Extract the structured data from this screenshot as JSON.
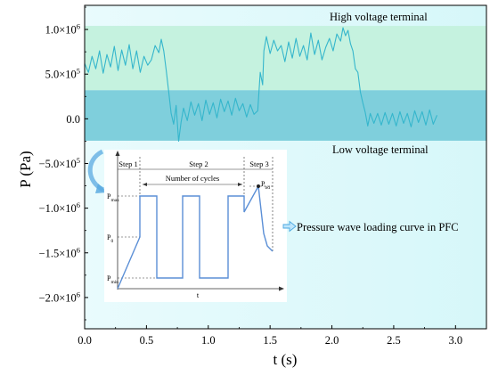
{
  "chart_data": {
    "type": "line",
    "xlabel": "t (s)",
    "ylabel": "P (Pa)",
    "xlim": [
      0.0,
      3.25
    ],
    "ylim": [
      -2350000.0,
      1270000.0
    ],
    "x_ticks": [
      {
        "v": 0.0,
        "label": "0.0"
      },
      {
        "v": 0.5,
        "label": "0.5"
      },
      {
        "v": 1.0,
        "label": "1.0"
      },
      {
        "v": 1.5,
        "label": "1.5"
      },
      {
        "v": 2.0,
        "label": "2.0"
      },
      {
        "v": 2.5,
        "label": "2.5"
      },
      {
        "v": 3.0,
        "label": "3.0"
      }
    ],
    "y_ticks": [
      {
        "v": 1000000.0,
        "mant": "1.0×10",
        "exp": "6"
      },
      {
        "v": 500000.0,
        "mant": "5.0×10",
        "exp": "5"
      },
      {
        "v": 0.0,
        "mant": "0.0",
        "exp": ""
      },
      {
        "v": -500000.0,
        "mant": "−5.0×10",
        "exp": "5"
      },
      {
        "v": -1000000.0,
        "mant": "−1.0×10",
        "exp": "6"
      },
      {
        "v": -1500000.0,
        "mant": "−1.5×10",
        "exp": "6"
      },
      {
        "v": -2000000.0,
        "mant": "−2.0×10",
        "exp": "6"
      }
    ],
    "bands": [
      {
        "name": "High voltage terminal",
        "y_from": 320000.0,
        "y_to": 1040000.0,
        "color": "#c5f2df"
      },
      {
        "name": "Low voltage terminal",
        "y_from": -245000.0,
        "y_to": 320000.0,
        "color": "#7fcfdc"
      }
    ],
    "series": [
      {
        "color": "#35b6cc",
        "x": [
          0.0,
          0.03,
          0.06,
          0.09,
          0.12,
          0.15,
          0.18,
          0.21,
          0.24,
          0.27,
          0.3,
          0.33,
          0.36,
          0.39,
          0.42,
          0.45,
          0.48,
          0.51,
          0.54,
          0.57,
          0.6,
          0.62,
          0.64,
          0.66,
          0.68,
          0.7,
          0.72,
          0.74,
          0.76,
          0.78,
          0.8,
          0.83,
          0.86,
          0.89,
          0.92,
          0.95,
          0.98,
          1.01,
          1.04,
          1.07,
          1.1,
          1.13,
          1.16,
          1.19,
          1.22,
          1.25,
          1.28,
          1.31,
          1.34,
          1.37,
          1.4,
          1.42,
          1.44,
          1.45,
          1.47,
          1.5,
          1.53,
          1.56,
          1.59,
          1.62,
          1.65,
          1.68,
          1.71,
          1.74,
          1.77,
          1.8,
          1.83,
          1.86,
          1.89,
          1.92,
          1.95,
          1.98,
          2.01,
          2.04,
          2.07,
          2.09,
          2.11,
          2.13,
          2.15,
          2.17,
          2.19,
          2.21,
          2.23,
          2.25,
          2.27,
          2.29,
          2.31,
          2.34,
          2.37,
          2.4,
          2.43,
          2.46,
          2.49,
          2.52,
          2.55,
          2.58,
          2.61,
          2.64,
          2.67,
          2.7,
          2.73,
          2.76,
          2.79,
          2.82,
          2.85
        ],
        "y": [
          620000,
          520000,
          700000,
          560000,
          760000,
          510000,
          720000,
          580000,
          810000,
          540000,
          770000,
          600000,
          830000,
          560000,
          760000,
          520000,
          700000,
          600000,
          660000,
          820000,
          740000,
          890000,
          760000,
          540000,
          300000,
          60000,
          -60000,
          150000,
          -250000,
          -40000,
          120000,
          -20000,
          190000,
          40000,
          170000,
          -20000,
          210000,
          50000,
          180000,
          10000,
          220000,
          80000,
          200000,
          40000,
          230000,
          90000,
          170000,
          20000,
          160000,
          50000,
          90000,
          520000,
          380000,
          760000,
          920000,
          730000,
          880000,
          760000,
          820000,
          640000,
          860000,
          680000,
          900000,
          700000,
          820000,
          660000,
          960000,
          720000,
          880000,
          660000,
          800000,
          900000,
          760000,
          950000,
          870000,
          1020000,
          930000,
          990000,
          840000,
          760000,
          560000,
          520000,
          300000,
          180000,
          70000,
          -80000,
          60000,
          -50000,
          60000,
          -70000,
          70000,
          -60000,
          60000,
          -80000,
          80000,
          -50000,
          60000,
          -90000,
          90000,
          -40000,
          80000,
          -70000,
          100000,
          -60000,
          40000
        ]
      }
    ],
    "annotations": {
      "high_label": "High voltage terminal",
      "low_label": "Low voltage terminal",
      "inset_caption": "Pressure wave loading curve in PFC"
    },
    "inset": {
      "type": "line",
      "line_color": "#5b8fd6",
      "step1": "Step 1",
      "step2": "Step 2",
      "step3": "Step 3",
      "cycles_label": "Number of cycles",
      "x_axis_label": "t",
      "p_max": {
        "base": "P",
        "sub": "max"
      },
      "p_0": {
        "base": "P",
        "sub": "0"
      },
      "p_min": {
        "base": "P",
        "sub": "min"
      },
      "p_bd": {
        "base": "P",
        "sub": "bd"
      }
    }
  }
}
